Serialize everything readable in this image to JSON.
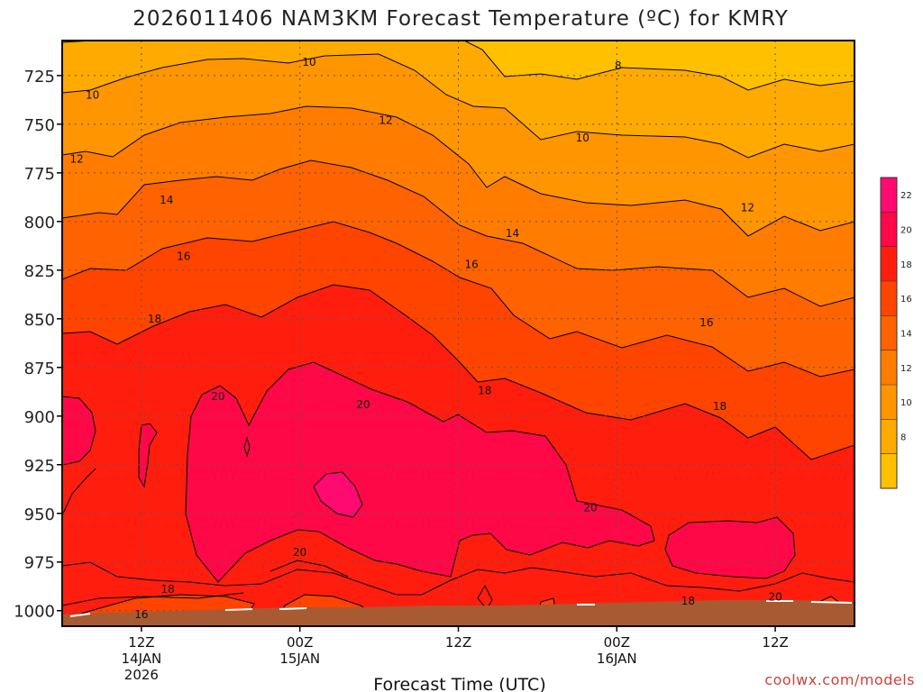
{
  "chart_data": {
    "type": "contour",
    "title": "2026011406 NAM3KM Forecast Temperature (ºC) for KMRY",
    "xlabel": "Forecast Time (UTC)",
    "ylabel": "",
    "credit": "coolwx.com/models",
    "y_axis": {
      "quantity": "pressure_hPa",
      "inverted": true,
      "ylim": [
        1008,
        707
      ],
      "ticks": [
        725,
        750,
        775,
        800,
        825,
        850,
        875,
        900,
        925,
        950,
        975,
        1000
      ]
    },
    "x_axis": {
      "quantity": "forecast_hour",
      "xlim": [
        6,
        66
      ],
      "ticks": [
        {
          "x": 12,
          "lines": [
            "12Z",
            "14JAN",
            "2026"
          ]
        },
        {
          "x": 24,
          "lines": [
            "00Z",
            "15JAN"
          ]
        },
        {
          "x": 36,
          "lines": [
            "12Z"
          ]
        },
        {
          "x": 48,
          "lines": [
            "00Z",
            "16JAN"
          ]
        },
        {
          "x": 60,
          "lines": [
            "12Z"
          ]
        }
      ]
    },
    "surface_pressure_hPa": 1008,
    "grid": true,
    "colorbar": {
      "placement": "right",
      "labels": [
        "22",
        "20",
        "18",
        "16",
        "14",
        "12",
        "10",
        "8"
      ],
      "bands": [
        {
          "range": "<8",
          "color": "#ffc000"
        },
        {
          "range": "8-10",
          "color": "#ffaa00"
        },
        {
          "range": "10-12",
          "color": "#ff9500"
        },
        {
          "range": "12-14",
          "color": "#ff7c00"
        },
        {
          "range": "14-16",
          "color": "#ff6200"
        },
        {
          "range": "16-18",
          "color": "#ff4400"
        },
        {
          "range": "18-20",
          "color": "#ff1e0e"
        },
        {
          "range": "20-22",
          "color": "#ff0848"
        },
        {
          "range": ">22",
          "color": "#ff0a70"
        }
      ]
    },
    "contour_labels": [
      {
        "level": "10",
        "x": 24.7,
        "p": 718
      },
      {
        "level": "10",
        "x": 8.3,
        "p": 735
      },
      {
        "level": "8",
        "x": 48.1,
        "p": 720
      },
      {
        "level": "12",
        "x": 30.5,
        "p": 748
      },
      {
        "level": "10",
        "x": 45.4,
        "p": 757
      },
      {
        "level": "12",
        "x": 7.1,
        "p": 768
      },
      {
        "level": "14",
        "x": 13.9,
        "p": 789
      },
      {
        "level": "12",
        "x": 57.9,
        "p": 793
      },
      {
        "level": "14",
        "x": 40.1,
        "p": 806
      },
      {
        "level": "16",
        "x": 15.2,
        "p": 818
      },
      {
        "level": "16",
        "x": 37.0,
        "p": 822
      },
      {
        "level": "18",
        "x": 13.0,
        "p": 850
      },
      {
        "level": "16",
        "x": 54.8,
        "p": 852
      },
      {
        "level": "20",
        "x": 17.8,
        "p": 890
      },
      {
        "level": "18",
        "x": 38.0,
        "p": 887
      },
      {
        "level": "20",
        "x": 28.8,
        "p": 894
      },
      {
        "level": "18",
        "x": 55.8,
        "p": 895
      },
      {
        "level": "20",
        "x": 46.0,
        "p": 947
      },
      {
        "level": "20",
        "x": 24.0,
        "p": 970
      },
      {
        "level": "18",
        "x": 14.0,
        "p": 989
      },
      {
        "level": "20",
        "x": 60.0,
        "p": 993
      },
      {
        "level": "18",
        "x": 53.4,
        "p": 995
      },
      {
        "level": "16",
        "x": 12.0,
        "p": 1002
      }
    ]
  }
}
